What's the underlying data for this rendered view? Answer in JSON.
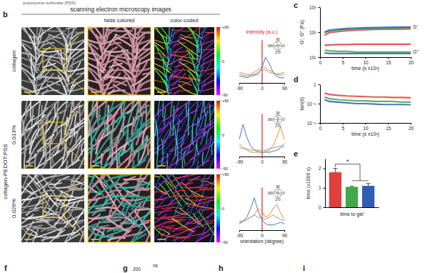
{
  "figure": {
    "top_text": "polystyrene sulfonate (PSS)",
    "panel_labels": [
      "b",
      "c",
      "d",
      "e",
      "f",
      "g",
      "h",
      "i"
    ],
    "header": "scanning electron microscopy images",
    "columns": [
      "false colored",
      "color-coded"
    ],
    "rows": [
      "collagen",
      "0.013%",
      "0.026%"
    ],
    "group_label": "collagen-PEDOT:PSS",
    "colorbar": {
      "range": [
        -90,
        90
      ],
      "ticks": [
        {
          "value": 90,
          "label": "+90"
        },
        0,
        -90
      ]
    },
    "polar_labels": [
      90,
      180,
      0,
      270
    ],
    "fragments": [
      "200",
      "ns"
    ]
  },
  "chart_data": [
    {
      "type": "line",
      "title": "intensity (a.u.)",
      "x": [
        -90,
        -75,
        -60,
        -45,
        -30,
        -15,
        0,
        15,
        30,
        45,
        60,
        75,
        90
      ],
      "series": [
        {
          "color": "#3a78c9",
          "values": [
            0.15,
            0.15,
            0.12,
            0.15,
            0.18,
            0.2,
            0.35,
            0.6,
            0.45,
            0.25,
            0.15,
            0.12,
            0.12
          ]
        },
        {
          "color": "#e98b2a",
          "values": [
            0.2,
            0.18,
            0.15,
            0.2,
            0.25,
            0.3,
            0.4,
            0.35,
            0.3,
            0.25,
            0.2,
            0.18,
            0.2
          ]
        },
        {
          "color": "#9a9a9a",
          "values": [
            0.25,
            0.22,
            0.2,
            0.18,
            0.2,
            0.25,
            0.3,
            0.3,
            0.25,
            0.22,
            0.2,
            0.22,
            0.25
          ]
        }
      ],
      "xlim": [
        -90,
        90
      ],
      "xticks": [
        -90,
        0,
        90
      ],
      "ylim": [
        0,
        1
      ],
      "tick_labels": "x"
    },
    {
      "type": "line",
      "x": [
        -90,
        -75,
        -60,
        -45,
        -30,
        -15,
        0,
        15,
        30,
        45,
        60,
        75,
        90
      ],
      "series": [
        {
          "color": "#3a78c9",
          "values": [
            0.4,
            0.75,
            0.45,
            0.25,
            0.15,
            0.12,
            0.1,
            0.1,
            0.1,
            0.12,
            0.15,
            0.2,
            0.3
          ]
        },
        {
          "color": "#e98b2a",
          "values": [
            0.3,
            0.2,
            0.15,
            0.1,
            0.1,
            0.1,
            0.1,
            0.12,
            0.15,
            0.25,
            0.45,
            0.7,
            0.4
          ]
        },
        {
          "color": "#9a9a9a",
          "values": [
            0.2,
            0.2,
            0.18,
            0.15,
            0.15,
            0.15,
            0.15,
            0.15,
            0.18,
            0.2,
            0.22,
            0.25,
            0.22
          ]
        }
      ],
      "xlim": [
        -90,
        90
      ],
      "xticks": [
        -90,
        0,
        90
      ],
      "ylim": [
        0,
        1
      ],
      "tick_labels": "x"
    },
    {
      "type": "line",
      "xlabel": "orientation (degree)",
      "x": [
        -90,
        -75,
        -60,
        -45,
        -30,
        -15,
        0,
        15,
        30,
        45,
        60,
        75,
        90
      ],
      "series": [
        {
          "color": "#3a78c9",
          "values": [
            0.15,
            0.2,
            0.3,
            0.5,
            0.75,
            0.45,
            0.25,
            0.15,
            0.12,
            0.12,
            0.15,
            0.18,
            0.15
          ]
        },
        {
          "color": "#e98b2a",
          "values": [
            0.2,
            0.2,
            0.25,
            0.3,
            0.35,
            0.5,
            0.45,
            0.3,
            0.35,
            0.5,
            0.6,
            0.4,
            0.25
          ]
        },
        {
          "color": "#9a9a9a",
          "values": [
            0.2,
            0.22,
            0.25,
            0.3,
            0.35,
            0.3,
            0.28,
            0.25,
            0.3,
            0.35,
            0.3,
            0.25,
            0.22
          ]
        }
      ],
      "xlim": [
        -90,
        90
      ],
      "xticks": [
        -90,
        0,
        90
      ],
      "ylim": [
        0,
        1
      ],
      "tick_labels": "x"
    },
    {
      "type": "line",
      "xlabel": "time (s x10²)",
      "ylabel": "G', G'' (Pa)",
      "annotations": [
        "G'",
        "G''"
      ],
      "x": [
        1,
        2,
        4,
        6,
        8,
        10,
        12,
        14,
        16,
        18,
        20
      ],
      "series": [
        {
          "color": "#e0403a",
          "values": [
            75,
            95,
            105,
            115,
            120,
            125,
            128,
            130,
            132,
            134,
            135
          ]
        },
        {
          "color": "#3fa84a",
          "values": [
            95,
            110,
            120,
            128,
            133,
            137,
            140,
            142,
            144,
            146,
            148
          ]
        },
        {
          "color": "#2f5fb3",
          "values": [
            100,
            120,
            132,
            140,
            146,
            150,
            153,
            155,
            157,
            159,
            160
          ]
        },
        {
          "color": "#e0403a",
          "values": [
            30,
            31,
            32,
            32,
            33,
            33,
            33,
            33,
            33,
            33,
            33
          ]
        },
        {
          "color": "#3fa84a",
          "values": [
            19,
            18,
            17,
            17,
            16,
            16,
            16,
            16,
            16,
            16,
            16
          ]
        },
        {
          "color": "#2f5fb3",
          "values": [
            15,
            14,
            14,
            14,
            14,
            14,
            14,
            14,
            14,
            14,
            14
          ]
        }
      ],
      "xlim": [
        0,
        20
      ],
      "xticks": [
        0,
        5,
        10,
        15,
        20
      ],
      "ylim": [
        10,
        1000
      ],
      "yticks": [
        {
          "value": 10,
          "label": "10¹"
        },
        {
          "value": 100,
          "label": "10²"
        },
        {
          "value": 1000,
          "label": "10³"
        }
      ],
      "log": "y"
    },
    {
      "type": "line",
      "xlabel": "time (s x10²)",
      "ylabel": "tan(δ)",
      "x": [
        1,
        2,
        4,
        6,
        8,
        10,
        12,
        14,
        16,
        18,
        20
      ],
      "series": [
        {
          "color": "#e0403a",
          "values": [
            0.35,
            0.3,
            0.27,
            0.25,
            0.24,
            0.23,
            0.22,
            0.22,
            0.21,
            0.21,
            0.2
          ]
        },
        {
          "color": "#3fa84a",
          "values": [
            0.22,
            0.18,
            0.16,
            0.15,
            0.14,
            0.14,
            0.13,
            0.13,
            0.13,
            0.12,
            0.12
          ]
        },
        {
          "color": "#2f5fb3",
          "values": [
            0.16,
            0.13,
            0.12,
            0.11,
            0.1,
            0.1,
            0.095,
            0.09,
            0.09,
            0.09,
            0.088
          ]
        }
      ],
      "xlim": [
        0,
        20
      ],
      "xticks": [
        0,
        5,
        10,
        15,
        20
      ],
      "ylim": [
        0.01,
        1
      ],
      "yticks": [
        {
          "value": 0.01,
          "label": "10⁻²"
        },
        {
          "value": 0.1,
          "label": "10⁻¹"
        },
        1
      ],
      "log": "y"
    },
    {
      "type": "bar",
      "xlabel": "time to gel",
      "ylabel": "time (x1000 s)",
      "annotations": [
        "*"
      ],
      "categories": [
        null,
        null,
        null
      ],
      "values": [
        1.8,
        1.05,
        1.1
      ],
      "errors": [
        0.2,
        0.03,
        0.12
      ],
      "colors": [
        "#e0403a",
        "#3fa84a",
        "#2f5fb3"
      ],
      "ylim": [
        0,
        2.5
      ],
      "yticks": [
        0,
        1,
        2
      ]
    }
  ]
}
